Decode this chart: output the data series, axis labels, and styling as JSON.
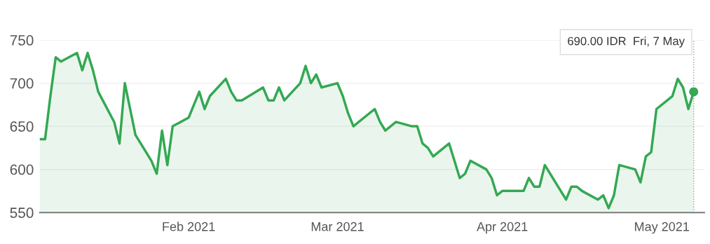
{
  "chart_data": {
    "type": "area",
    "x": [
      "2021-01-04",
      "2021-01-05",
      "2021-01-06",
      "2021-01-07",
      "2021-01-08",
      "2021-01-11",
      "2021-01-12",
      "2021-01-13",
      "2021-01-14",
      "2021-01-15",
      "2021-01-18",
      "2021-01-19",
      "2021-01-20",
      "2021-01-21",
      "2021-01-22",
      "2021-01-25",
      "2021-01-26",
      "2021-01-27",
      "2021-01-28",
      "2021-01-29",
      "2021-02-01",
      "2021-02-02",
      "2021-02-03",
      "2021-02-04",
      "2021-02-05",
      "2021-02-08",
      "2021-02-09",
      "2021-02-10",
      "2021-02-11",
      "2021-02-15",
      "2021-02-16",
      "2021-02-17",
      "2021-02-18",
      "2021-02-19",
      "2021-02-22",
      "2021-02-23",
      "2021-02-24",
      "2021-02-25",
      "2021-02-26",
      "2021-03-01",
      "2021-03-02",
      "2021-03-03",
      "2021-03-04",
      "2021-03-05",
      "2021-03-08",
      "2021-03-09",
      "2021-03-10",
      "2021-03-12",
      "2021-03-15",
      "2021-03-16",
      "2021-03-17",
      "2021-03-18",
      "2021-03-19",
      "2021-03-22",
      "2021-03-23",
      "2021-03-24",
      "2021-03-25",
      "2021-03-26",
      "2021-03-29",
      "2021-03-30",
      "2021-03-31",
      "2021-04-01",
      "2021-04-05",
      "2021-04-06",
      "2021-04-07",
      "2021-04-08",
      "2021-04-09",
      "2021-04-12",
      "2021-04-13",
      "2021-04-14",
      "2021-04-15",
      "2021-04-16",
      "2021-04-19",
      "2021-04-20",
      "2021-04-21",
      "2021-04-22",
      "2021-04-23",
      "2021-04-26",
      "2021-04-27",
      "2021-04-28",
      "2021-04-29",
      "2021-04-30",
      "2021-05-03",
      "2021-05-04",
      "2021-05-05",
      "2021-05-06",
      "2021-05-07"
    ],
    "series": [
      {
        "color": "#34a853",
        "values": [
          635,
          635,
          685,
          730,
          725,
          735,
          715,
          735,
          715,
          690,
          655,
          630,
          700,
          670,
          640,
          610,
          595,
          645,
          605,
          650,
          660,
          675,
          690,
          670,
          685,
          705,
          690,
          680,
          680,
          695,
          680,
          680,
          695,
          680,
          700,
          720,
          700,
          710,
          695,
          700,
          685,
          665,
          650,
          655,
          670,
          655,
          645,
          655,
          650,
          650,
          630,
          625,
          615,
          630,
          610,
          590,
          595,
          610,
          600,
          590,
          570,
          575,
          575,
          590,
          580,
          580,
          605,
          575,
          565,
          580,
          580,
          575,
          565,
          570,
          555,
          570,
          605,
          600,
          585,
          615,
          620,
          670,
          685,
          705,
          695,
          670,
          690
        ]
      },
      {
        "type": "scatter",
        "color": "#34a853",
        "x": [
          "2021-05-07"
        ],
        "values": [
          690
        ]
      }
    ],
    "xlim": [
      "2021-01-04",
      "2021-05-09"
    ],
    "xticks": [
      {
        "value": "2021-02-01",
        "label": "Feb 2021"
      },
      {
        "value": "2021-03-01",
        "label": "Mar 2021"
      },
      {
        "value": "2021-04-01",
        "label": "Apr 2021"
      },
      {
        "value": "2021-05-01",
        "label": "May 2021"
      }
    ],
    "ylim": [
      550,
      750
    ],
    "yticks": [
      550,
      600,
      650,
      700,
      750
    ],
    "grid": "y",
    "ref_lines": [
      {
        "axis": "x",
        "value": "2021-05-07",
        "color": "#9e9e9e",
        "line_style": "dotted"
      }
    ],
    "annotations": [
      "690.00 IDR  Fri, 7 May"
    ]
  }
}
